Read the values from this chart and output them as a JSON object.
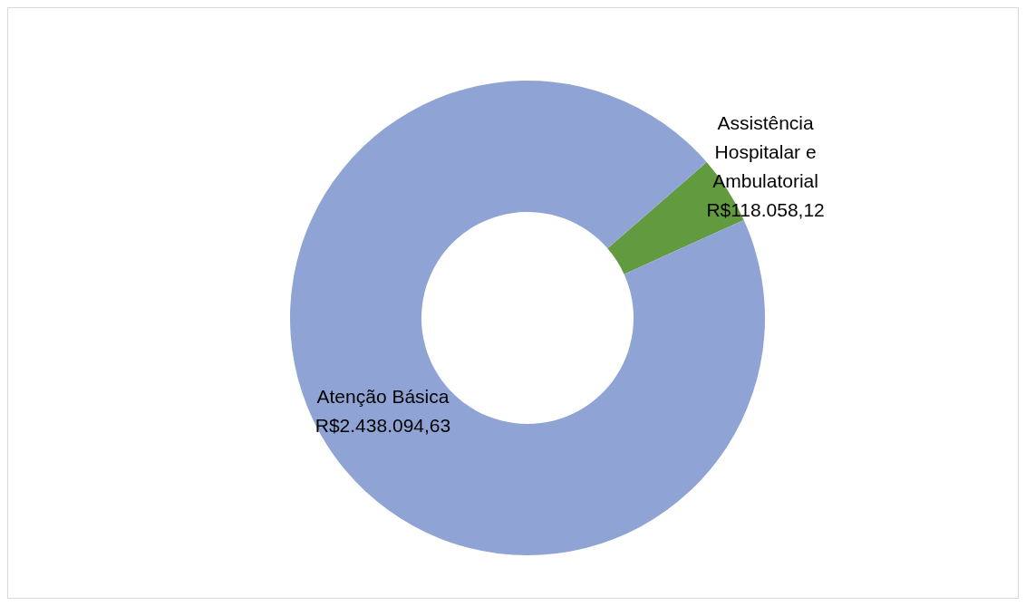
{
  "chart_data": {
    "type": "donut",
    "categories": [
      "Assistência Hospitalar e Ambulatorial",
      "Atenção Básica"
    ],
    "values": [
      118058.12,
      2438094.63
    ],
    "colors": [
      "#629a3f",
      "#8fa4d4"
    ],
    "value_labels": [
      "R$118.058,12",
      "R$2.438.094,63"
    ],
    "legend": false
  }
}
